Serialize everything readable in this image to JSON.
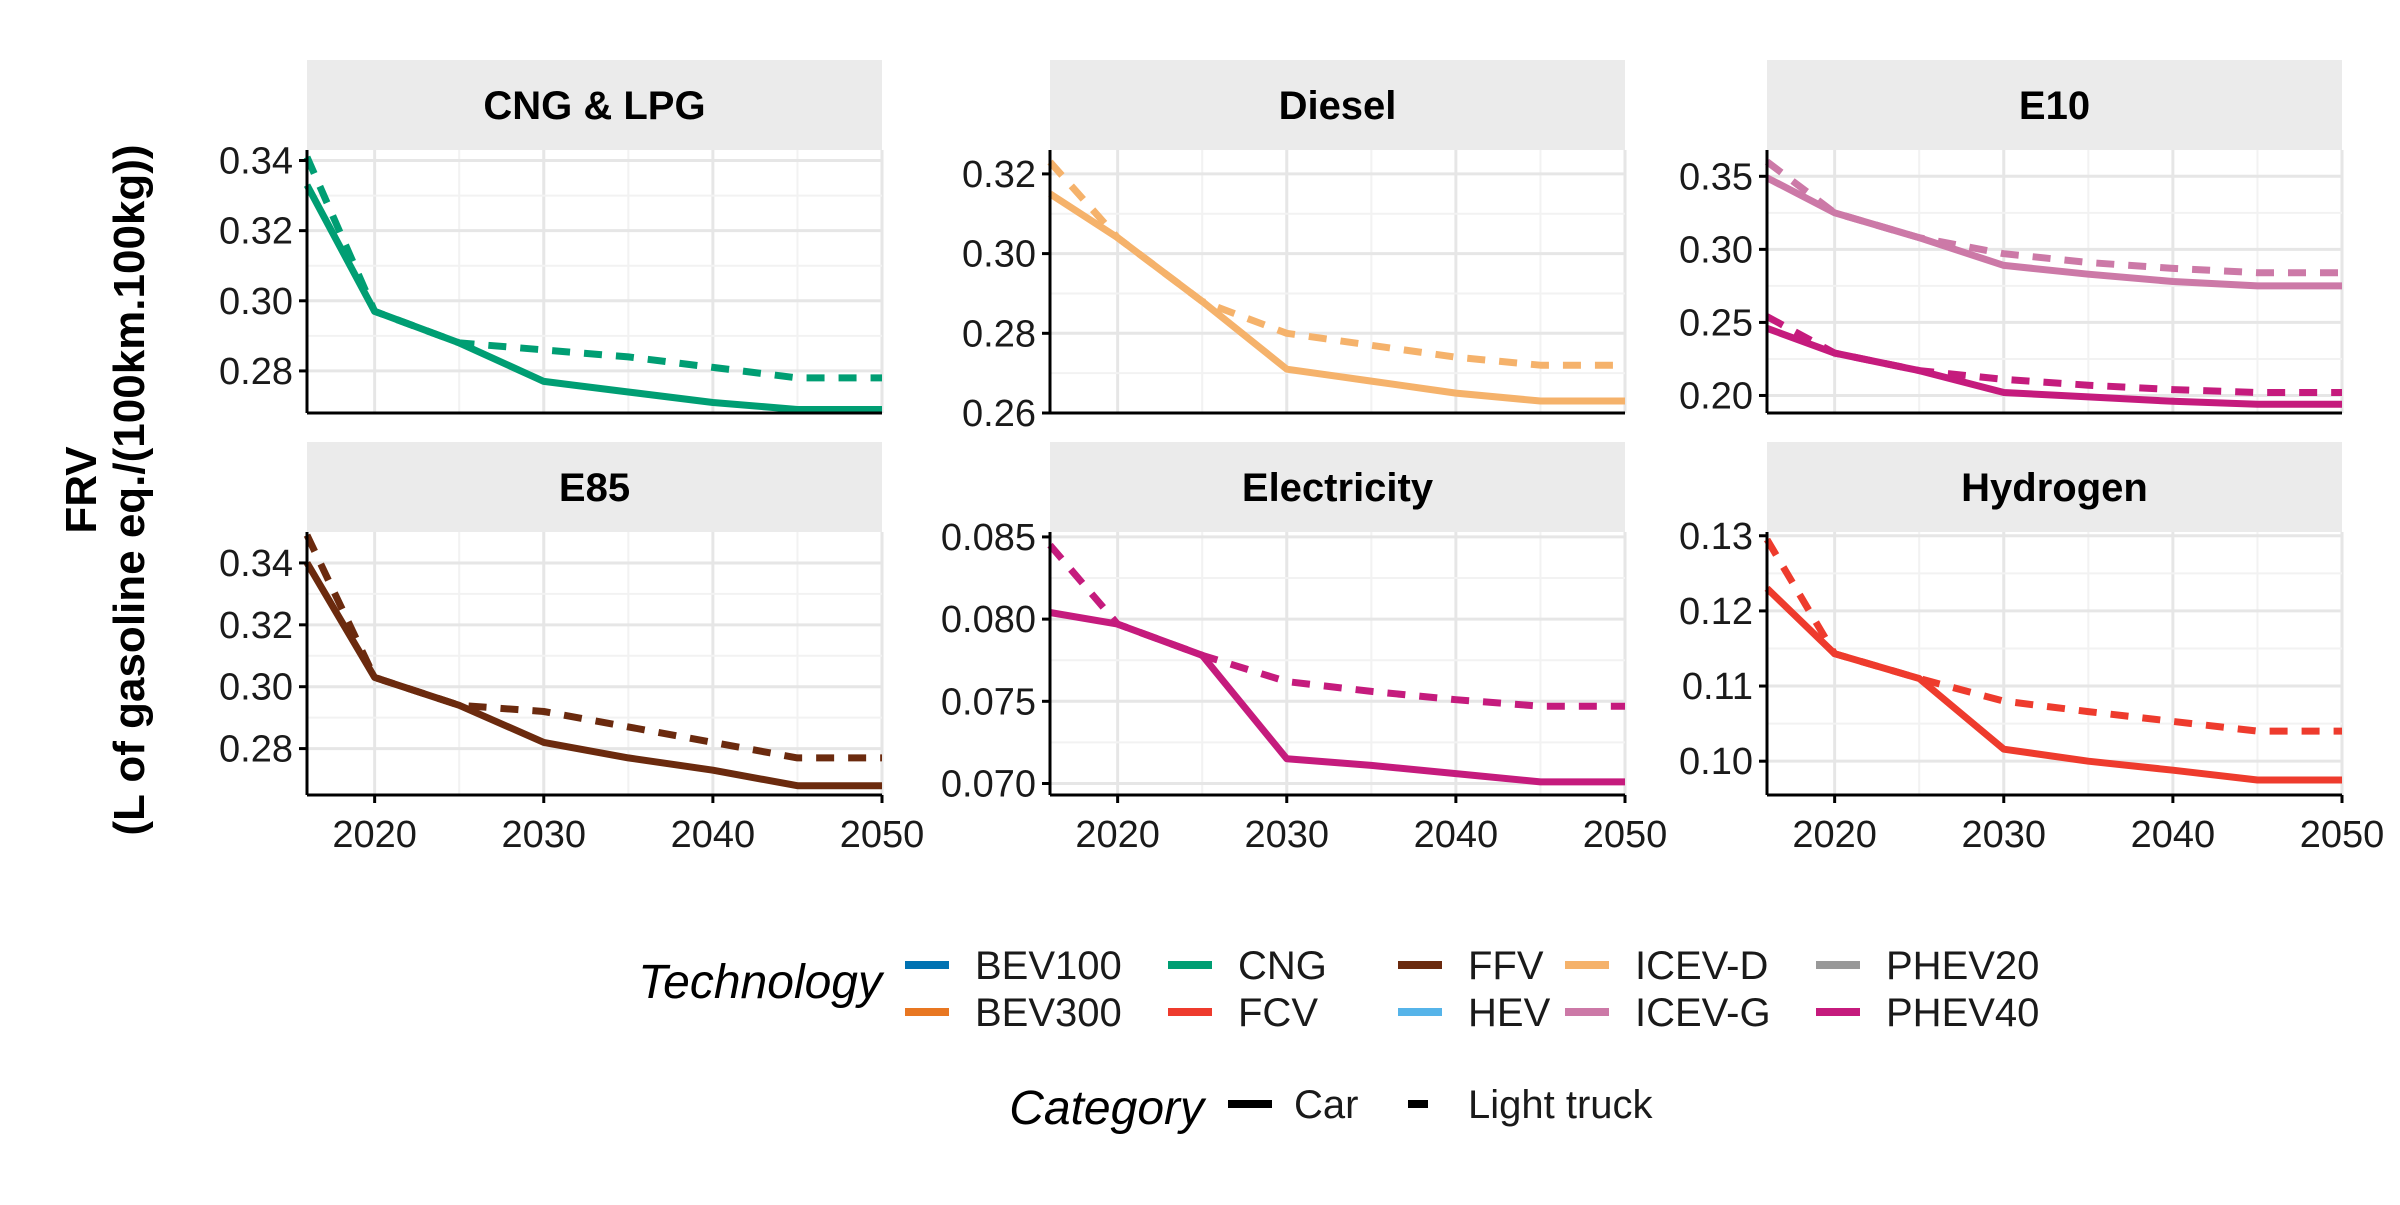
{
  "y_axis_title_line1": "FRV",
  "y_axis_title_line2": "(L of gasoline eq./(100km.100kg))",
  "x_axis_tick_labels": [
    "2020",
    "2030",
    "2040",
    "2050"
  ],
  "legend_technology": {
    "title": "Technology",
    "items": [
      {
        "label": "BEV100",
        "color": "#0072B2"
      },
      {
        "label": "BEV300",
        "color": "#E87722"
      },
      {
        "label": "CNG",
        "color": "#009E73"
      },
      {
        "label": "FCV",
        "color": "#EE3B2D"
      },
      {
        "label": "FFV",
        "color": "#6B2A0E"
      },
      {
        "label": "HEV",
        "color": "#56B4E9"
      },
      {
        "label": "ICEV-D",
        "color": "#F5B26B"
      },
      {
        "label": "ICEV-G",
        "color": "#CC79A7"
      },
      {
        "label": "PHEV20",
        "color": "#999999"
      },
      {
        "label": "PHEV40",
        "color": "#C51B7D"
      }
    ]
  },
  "legend_category": {
    "title": "Category",
    "items": [
      {
        "label": "Car",
        "linetype": "solid"
      },
      {
        "label": "Light truck",
        "linetype": "dashed"
      }
    ]
  },
  "chart_data": [
    {
      "type": "line",
      "panel": "CNG & LPG",
      "xlim": [
        2016,
        2050
      ],
      "ylim": [
        0.268,
        0.343
      ],
      "y_ticks": [
        "0.28",
        "0.30",
        "0.32",
        "0.34"
      ],
      "x_ticks": [
        2020,
        2030,
        2040,
        2050
      ],
      "series": [
        {
          "technology": "CNG",
          "category": "Car",
          "color": "#009E73",
          "linetype": "solid",
          "x": [
            2016,
            2020,
            2025,
            2030,
            2035,
            2040,
            2045,
            2050
          ],
          "y": [
            0.333,
            0.297,
            0.288,
            0.277,
            0.274,
            0.271,
            0.269,
            0.269
          ]
        },
        {
          "technology": "CNG",
          "category": "Light truck",
          "color": "#009E73",
          "linetype": "dashed",
          "x": [
            2016,
            2020,
            2025,
            2030,
            2035,
            2040,
            2045,
            2050
          ],
          "y": [
            0.341,
            0.297,
            0.288,
            0.286,
            0.284,
            0.281,
            0.278,
            0.278
          ]
        }
      ]
    },
    {
      "type": "line",
      "panel": "Diesel",
      "xlim": [
        2016,
        2050
      ],
      "ylim": [
        0.26,
        0.326
      ],
      "y_ticks": [
        "0.26",
        "0.28",
        "0.30",
        "0.32"
      ],
      "x_ticks": [
        2020,
        2030,
        2040,
        2050
      ],
      "series": [
        {
          "technology": "ICEV-D",
          "category": "Car",
          "color": "#F5B26B",
          "linetype": "solid",
          "x": [
            2016,
            2020,
            2025,
            2030,
            2035,
            2040,
            2045,
            2050
          ],
          "y": [
            0.315,
            0.304,
            0.288,
            0.271,
            0.268,
            0.265,
            0.263,
            0.263
          ]
        },
        {
          "technology": "ICEV-D",
          "category": "Light truck",
          "color": "#F5B26B",
          "linetype": "dashed",
          "x": [
            2016,
            2020,
            2025,
            2030,
            2035,
            2040,
            2045,
            2050
          ],
          "y": [
            0.323,
            0.304,
            0.288,
            0.28,
            0.277,
            0.274,
            0.272,
            0.272
          ]
        }
      ]
    },
    {
      "type": "line",
      "panel": "E10",
      "xlim": [
        2016,
        2050
      ],
      "ylim": [
        0.188,
        0.368
      ],
      "y_ticks": [
        "0.20",
        "0.25",
        "0.30",
        "0.35"
      ],
      "x_ticks": [
        2020,
        2030,
        2040,
        2050
      ],
      "series": [
        {
          "technology": "ICEV-G",
          "category": "Car",
          "color": "#CC79A7",
          "linetype": "solid",
          "x": [
            2016,
            2020,
            2025,
            2030,
            2035,
            2040,
            2045,
            2050
          ],
          "y": [
            0.349,
            0.325,
            0.308,
            0.289,
            0.283,
            0.278,
            0.275,
            0.275
          ]
        },
        {
          "technology": "ICEV-G",
          "category": "Light truck",
          "color": "#CC79A7",
          "linetype": "dashed",
          "x": [
            2016,
            2020,
            2025,
            2030,
            2035,
            2040,
            2045,
            2050
          ],
          "y": [
            0.36,
            0.325,
            0.308,
            0.297,
            0.291,
            0.287,
            0.284,
            0.284
          ]
        },
        {
          "technology": "PHEV40",
          "category": "Car",
          "color": "#C51B7D",
          "linetype": "solid",
          "x": [
            2016,
            2020,
            2025,
            2030,
            2035,
            2040,
            2045,
            2050
          ],
          "y": [
            0.246,
            0.229,
            0.217,
            0.202,
            0.199,
            0.196,
            0.194,
            0.194
          ]
        },
        {
          "technology": "PHEV40",
          "category": "Light truck",
          "color": "#C51B7D",
          "linetype": "dashed",
          "x": [
            2016,
            2020,
            2025,
            2030,
            2035,
            2040,
            2045,
            2050
          ],
          "y": [
            0.254,
            0.229,
            0.217,
            0.211,
            0.207,
            0.204,
            0.202,
            0.202
          ]
        }
      ]
    },
    {
      "type": "line",
      "panel": "E85",
      "xlim": [
        2016,
        2050
      ],
      "ylim": [
        0.265,
        0.35
      ],
      "y_ticks": [
        "0.28",
        "0.30",
        "0.32",
        "0.34"
      ],
      "x_ticks": [
        2020,
        2030,
        2040,
        2050
      ],
      "series": [
        {
          "technology": "FFV",
          "category": "Car",
          "color": "#6B2A0E",
          "linetype": "solid",
          "x": [
            2016,
            2020,
            2025,
            2030,
            2035,
            2040,
            2045,
            2050
          ],
          "y": [
            0.34,
            0.303,
            0.294,
            0.282,
            0.277,
            0.273,
            0.268,
            0.268
          ]
        },
        {
          "technology": "FFV",
          "category": "Light truck",
          "color": "#6B2A0E",
          "linetype": "dashed",
          "x": [
            2016,
            2020,
            2025,
            2030,
            2035,
            2040,
            2045,
            2050
          ],
          "y": [
            0.349,
            0.303,
            0.294,
            0.292,
            0.287,
            0.282,
            0.277,
            0.277
          ]
        }
      ]
    },
    {
      "type": "line",
      "panel": "Electricity",
      "xlim": [
        2016,
        2050
      ],
      "ylim": [
        0.0693,
        0.0853
      ],
      "y_ticks": [
        "0.070",
        "0.075",
        "0.080",
        "0.085"
      ],
      "x_ticks": [
        2020,
        2030,
        2040,
        2050
      ],
      "series": [
        {
          "technology": "PHEV40",
          "category": "Car",
          "color": "#C51B7D",
          "linetype": "solid",
          "x": [
            2016,
            2020,
            2025,
            2030,
            2035,
            2040,
            2045,
            2050
          ],
          "y": [
            0.0804,
            0.0797,
            0.0778,
            0.0715,
            0.0711,
            0.0706,
            0.0701,
            0.0701
          ]
        },
        {
          "technology": "PHEV40",
          "category": "Light truck",
          "color": "#C51B7D",
          "linetype": "dashed",
          "x": [
            2016,
            2020,
            2025,
            2030,
            2035,
            2040,
            2045,
            2050
          ],
          "y": [
            0.0845,
            0.0797,
            0.0778,
            0.0762,
            0.0756,
            0.0751,
            0.0747,
            0.0747
          ]
        }
      ]
    },
    {
      "type": "line",
      "panel": "Hydrogen",
      "xlim": [
        2016,
        2050
      ],
      "ylim": [
        0.0955,
        0.1305
      ],
      "y_ticks": [
        "0.10",
        "0.11",
        "0.12",
        "0.13"
      ],
      "x_ticks": [
        2020,
        2030,
        2040,
        2050
      ],
      "series": [
        {
          "technology": "FCV",
          "category": "Car",
          "color": "#EE3B2D",
          "linetype": "solid",
          "x": [
            2016,
            2020,
            2025,
            2030,
            2035,
            2040,
            2045,
            2050
          ],
          "y": [
            0.123,
            0.1143,
            0.111,
            0.1016,
            0.1,
            0.0988,
            0.0975,
            0.0975
          ]
        },
        {
          "technology": "FCV",
          "category": "Light truck",
          "color": "#EE3B2D",
          "linetype": "dashed",
          "x": [
            2016,
            2020,
            2025,
            2030,
            2035,
            2040,
            2045,
            2050
          ],
          "y": [
            0.1295,
            0.1143,
            0.111,
            0.108,
            0.1066,
            0.1053,
            0.104,
            0.104
          ]
        }
      ]
    }
  ]
}
